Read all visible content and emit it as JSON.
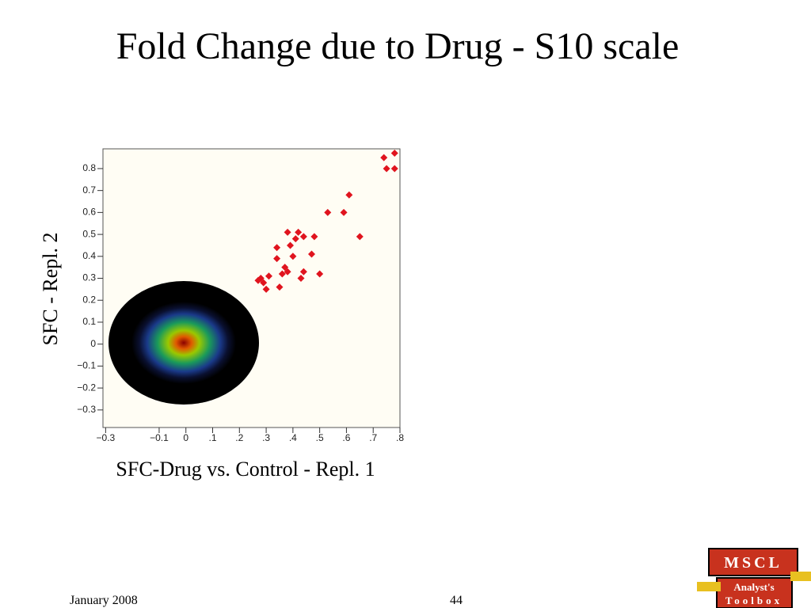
{
  "title": "Fold Change due to Drug - S10 scale",
  "chart_data": {
    "type": "scatter",
    "x_label": "SFC-Drug vs. Control - Repl. 1",
    "y_label": "SFC - Repl.  2",
    "xlim": [
      -0.31,
      0.8
    ],
    "ylim": [
      -0.38,
      0.89
    ],
    "xticks": [
      {
        "value": -0.3,
        "label": "−0.3"
      },
      {
        "value": -0.1,
        "label": "−0.1"
      },
      0,
      {
        "value": 0.1,
        "label": ".1"
      },
      {
        "value": 0.2,
        "label": ".2"
      },
      {
        "value": 0.3,
        "label": ".3"
      },
      {
        "value": 0.4,
        "label": ".4"
      },
      {
        "value": 0.5,
        "label": ".5"
      },
      {
        "value": 0.6,
        "label": ".6"
      },
      {
        "value": 0.7,
        "label": ".7"
      },
      {
        "value": 0.8,
        "label": ".8"
      }
    ],
    "yticks": [
      {
        "value": -0.3,
        "label": "−0.3"
      },
      {
        "value": -0.2,
        "label": "−0.2"
      },
      {
        "value": -0.1,
        "label": "−0.1"
      },
      0,
      0.1,
      0.2,
      0.3,
      0.4,
      0.5,
      0.6,
      0.7,
      0.8
    ],
    "series": [
      {
        "color": "#e0141e",
        "x": [
          0.74,
          0.78,
          0.75,
          0.78,
          0.61,
          0.53,
          0.59,
          0.65,
          0.48,
          0.42,
          0.38,
          0.44,
          0.41,
          0.34,
          0.39,
          0.34,
          0.4,
          0.47,
          0.37,
          0.38,
          0.36,
          0.44,
          0.5,
          0.43,
          0.31,
          0.28,
          0.27,
          0.29,
          0.3,
          0.35
        ],
        "values": [
          0.85,
          0.87,
          0.8,
          0.8,
          0.68,
          0.6,
          0.6,
          0.49,
          0.49,
          0.51,
          0.51,
          0.49,
          0.48,
          0.44,
          0.45,
          0.39,
          0.4,
          0.41,
          0.35,
          0.33,
          0.32,
          0.33,
          0.32,
          0.3,
          0.31,
          0.3,
          0.29,
          0.28,
          0.25,
          0.26
        ]
      }
    ]
  },
  "footer": {
    "date": "January 2008",
    "page": "44"
  },
  "logo": {
    "line1": "MSCL",
    "line2": "Analyst's",
    "line3": "Toolbox"
  }
}
